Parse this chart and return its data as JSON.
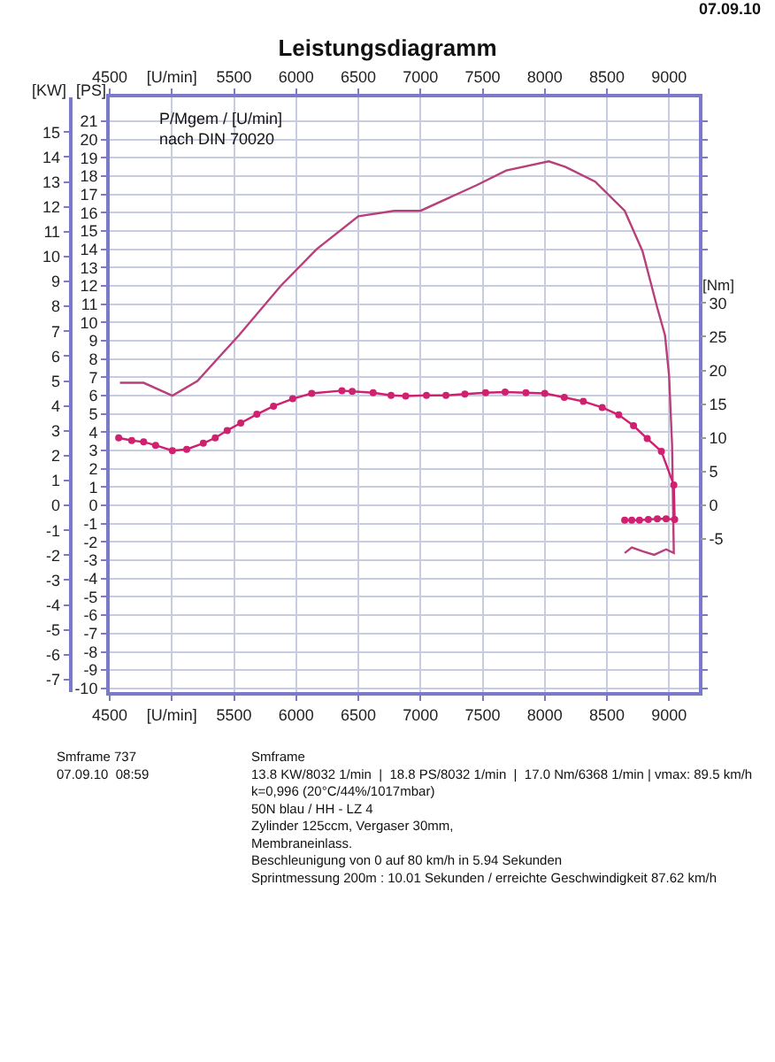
{
  "chart_data": {
    "type": "line",
    "title": "Leistungsdiagramm",
    "annotations": [
      "07.09.10",
      "P/Mgem / [U/min]\nnach DIN 70020",
      "Smframe 737\n07.09.10  08:59",
      "Smframe\n13.8 KW/8032 1/min  |  18.8 PS/8032 1/min  |  17.0 Nm/6368 1/min | vmax: 89.5 km/h\nk=0,996 (20°C/44%/1017mbar)\n50N blau / HH - LZ 4\nZylinder 125ccm, Vergaser 30mm,\nMembraneinlass.\nBeschleunigung von 0 auf 80 km/h in 5.94 Sekunden\nSprintmessung 200m : 10.01 Sekunden / erreichte Geschwindigkeit 87.62 km/h"
    ],
    "ylabel": "[PS]",
    "y2label": "[KW]",
    "y3label": "[Nm]",
    "xlim": [
      4500,
      9240
    ],
    "xticks": [
      4500,
      {
        "value": 5000,
        "label": "[U/min]"
      },
      5500,
      6000,
      6500,
      7000,
      7500,
      8000,
      8500,
      9000
    ],
    "x2lim": [
      4500,
      9240
    ],
    "x2ticks": [
      4500,
      {
        "value": 5000,
        "label": "[U/min]"
      },
      5500,
      6000,
      6500,
      7000,
      7500,
      8000,
      8500,
      9000
    ],
    "ylim": [
      -10.2,
      22.3
    ],
    "yticks": [
      -10,
      -9,
      -8,
      -7,
      -6,
      -5,
      -4,
      -3,
      -2,
      -1,
      0,
      1,
      2,
      3,
      4,
      5,
      6,
      7,
      8,
      9,
      10,
      11,
      12,
      13,
      14,
      15,
      16,
      17,
      18,
      19,
      20,
      21
    ],
    "y2lim": [
      -7.5,
      16.4
    ],
    "y2ticks": [
      -7,
      -6,
      -5,
      -4,
      -3,
      -2,
      -1,
      0,
      1,
      2,
      3,
      4,
      5,
      6,
      7,
      8,
      9,
      10,
      11,
      12,
      13,
      14,
      15
    ],
    "y3lim": [
      -27.7,
      60.5
    ],
    "y3ticks": [
      -5,
      0,
      5,
      10,
      15,
      20,
      25,
      30
    ],
    "grid": true,
    "series": [
      {
        "color": "#b8407a",
        "axis": "y",
        "marker": "none",
        "x": [
          4582,
          4773,
          5004,
          5205,
          5540,
          5876,
          6164,
          6500,
          6788,
          7000,
          7452,
          7690,
          8032,
          8167,
          8405,
          8643,
          8786,
          8905,
          8967,
          9000,
          9024,
          9038,
          8976,
          8880,
          8786,
          8700,
          8643
        ],
        "values": [
          6.7,
          6.7,
          6.0,
          6.8,
          9.3,
          12.0,
          14.0,
          15.8,
          16.1,
          16.1,
          17.5,
          18.3,
          18.8,
          18.5,
          17.7,
          16.1,
          13.9,
          10.8,
          9.3,
          7.1,
          3.3,
          -2.6,
          -2.4,
          -2.7,
          -2.5,
          -2.3,
          -2.6
        ]
      },
      {
        "color": "#d02070",
        "axis": "y3",
        "marker": "circle",
        "x": [
          4572,
          4677,
          4773,
          4869,
          5004,
          5119,
          5253,
          5349,
          5445,
          5554,
          5684,
          5818,
          5972,
          6125,
          6368,
          6451,
          6619,
          6763,
          6881,
          7048,
          7205,
          7357,
          7524,
          7681,
          7848,
          8000,
          8157,
          8310,
          8462,
          8595,
          8714,
          8824,
          8938,
          9038,
          9045,
          8976,
          8905,
          8833,
          8762,
          8700,
          8643
        ],
        "values": [
          10.0,
          9.6,
          9.4,
          8.9,
          8.1,
          8.3,
          9.2,
          10.0,
          11.1,
          12.2,
          13.5,
          14.7,
          15.8,
          16.6,
          17.0,
          16.9,
          16.7,
          16.3,
          16.2,
          16.3,
          16.3,
          16.5,
          16.7,
          16.8,
          16.7,
          16.6,
          16.0,
          15.4,
          14.5,
          13.4,
          11.8,
          9.9,
          8.0,
          3.0,
          -2.1,
          -2.0,
          -2.0,
          -2.1,
          -2.2,
          -2.2,
          -2.2
        ]
      }
    ]
  }
}
